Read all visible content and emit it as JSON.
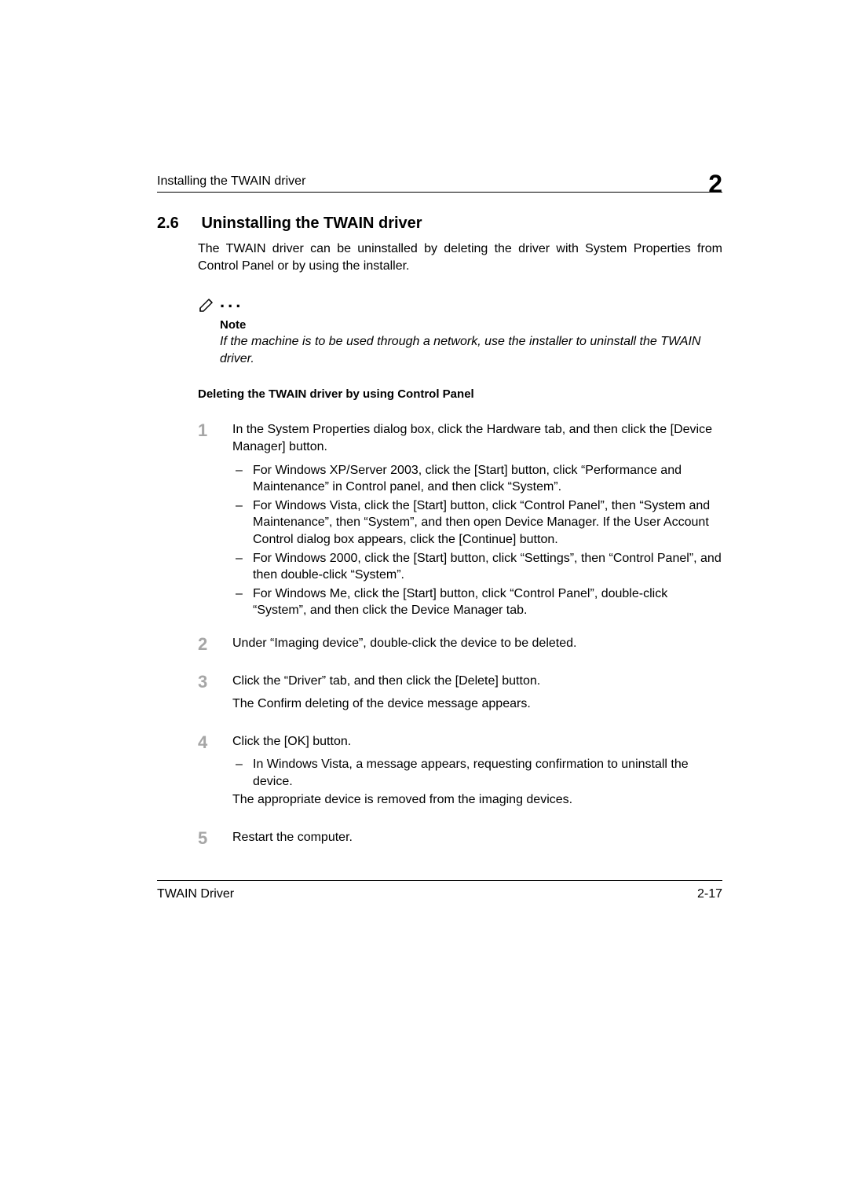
{
  "header": {
    "leftText": "Installing the TWAIN driver",
    "chapterNumber": "2"
  },
  "section": {
    "number": "2.6",
    "title": "Uninstalling the TWAIN driver",
    "intro": "The TWAIN driver can be uninstalled by deleting the driver with System Properties from Control Panel or by using the installer."
  },
  "note": {
    "label": "Note",
    "text": "If the machine is to be used through a network, use the installer to uninstall the TWAIN driver."
  },
  "subheading": "Deleting the TWAIN driver by using Control Panel",
  "steps": [
    {
      "n": "1",
      "main": "In the System Properties dialog box, click the Hardware tab, and then click the [Device Manager] button.",
      "subs": [
        "For Windows XP/Server 2003, click the [Start] button, click “Performance and Maintenance” in Control panel, and then click “System”.",
        "For Windows Vista, click the [Start] button, click “Control Panel”, then “System and Maintenance”, then “System”, and then open Device Manager. If the User Account Control dialog box appears, click the [Continue] button.",
        "For Windows 2000, click the [Start] button, click “Settings”, then “Control Panel”, and then double-click “System”.",
        "For Windows Me, click the [Start] button, click “Control Panel”, double-click “System”, and then click the Device Manager tab."
      ]
    },
    {
      "n": "2",
      "main": "Under “Imaging device”, double-click the device to be deleted.",
      "subs": []
    },
    {
      "n": "3",
      "main": "Click the “Driver” tab, and then click the [Delete] button.",
      "after": "The Confirm deleting of the device message appears.",
      "subs": []
    },
    {
      "n": "4",
      "main": "Click the [OK] button.",
      "subs": [
        "In Windows Vista, a message appears, requesting confirmation to uninstall the device."
      ],
      "after2": "The appropriate device is removed from the imaging devices."
    },
    {
      "n": "5",
      "main": "Restart the computer.",
      "subs": []
    }
  ],
  "footer": {
    "left": "TWAIN Driver",
    "right": "2-17"
  }
}
